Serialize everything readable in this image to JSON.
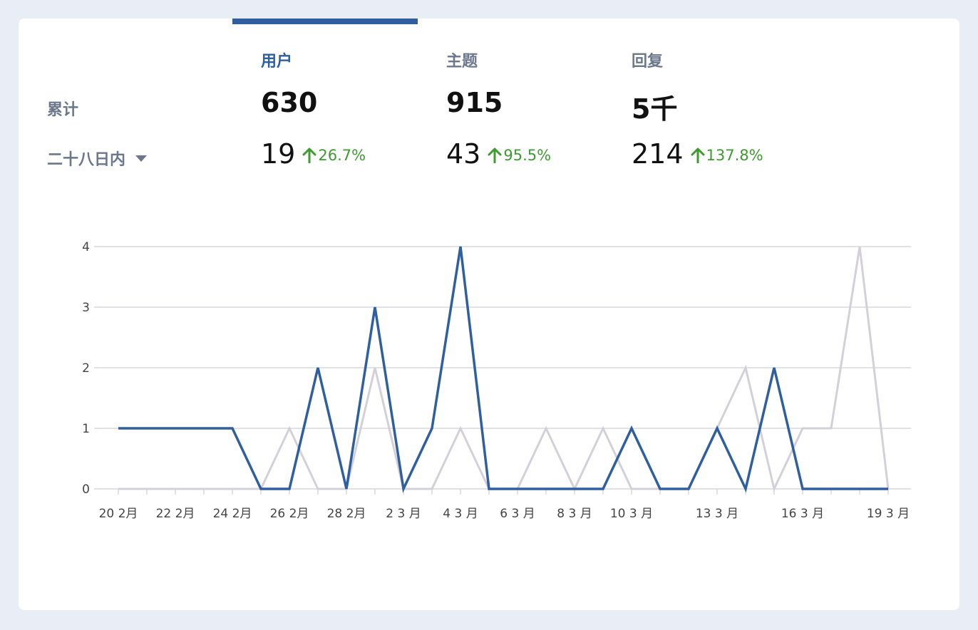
{
  "stats": {
    "row_total_label": "累计",
    "period_label": "二十八日内",
    "columns": [
      {
        "label": "用户",
        "total": "630",
        "period": "19",
        "change": "26.7%",
        "active": true
      },
      {
        "label": "主题",
        "total": "915",
        "period": "43",
        "change": "95.5%",
        "active": false
      },
      {
        "label": "回复",
        "total": "5千",
        "period": "214",
        "change": "137.8%",
        "active": false
      }
    ]
  },
  "colors": {
    "accent": "#2f5f9f",
    "secondary_line": "#d3d0d9",
    "trend_up": "#3d9b2f",
    "grid": "#d6d9de"
  },
  "chart_data": {
    "type": "line",
    "x": [
      "20 2月",
      "21 2月",
      "22 2月",
      "23 2月",
      "24 2月",
      "25 2月",
      "26 2月",
      "27 2月",
      "28 2月",
      "1 3 月",
      "2 3 月",
      "3 3 月",
      "4 3 月",
      "5 3 月",
      "6 3 月",
      "7 3 月",
      "8 3 月",
      "9 3 月",
      "10 3 月",
      "11 3 月",
      "12 3 月",
      "13 3 月",
      "14 3 月",
      "15 3 月",
      "16 3 月",
      "17 3 月",
      "18 3 月",
      "19 3 月"
    ],
    "tick_labels": [
      "20 2月",
      "22 2月",
      "24 2月",
      "26 2月",
      "28 2月",
      "2 3 月",
      "4 3 月",
      "6 3 月",
      "8 3 月",
      "10 3 月",
      "13 3 月",
      "16 3 月",
      "19 3 月"
    ],
    "series": [
      {
        "values": [
          1,
          1,
          1,
          1,
          1,
          0,
          0,
          2,
          0,
          3,
          0,
          1,
          4,
          0,
          0,
          0,
          0,
          0,
          1,
          0,
          0,
          1,
          0,
          2,
          0,
          0,
          0,
          0
        ],
        "color": "#2f5f9f"
      },
      {
        "values": [
          0,
          0,
          0,
          0,
          0,
          0,
          1,
          0,
          0,
          2,
          0,
          0,
          1,
          0,
          0,
          1,
          0,
          1,
          0,
          0,
          0,
          1,
          2,
          0,
          1,
          1,
          4,
          0
        ],
        "color": "#d3d0d9"
      }
    ],
    "ylim": [
      0,
      4
    ],
    "yticks": [
      0,
      1,
      2,
      3,
      4
    ],
    "grid": true
  }
}
